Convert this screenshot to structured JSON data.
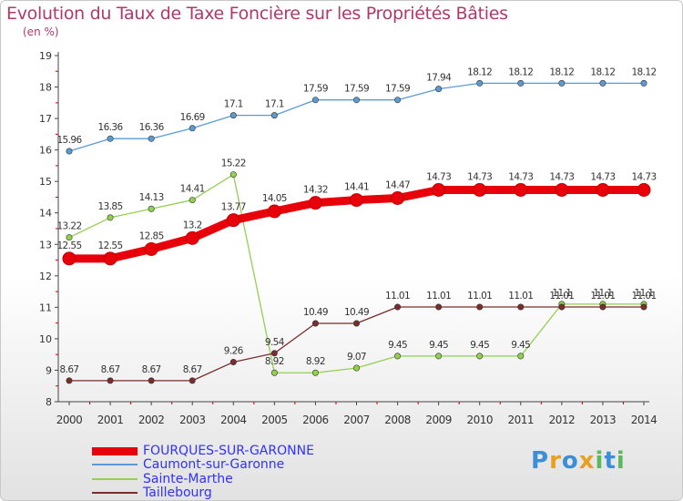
{
  "header": {
    "title": "Evolution du Taux de Taxe Foncière sur les Propriétés Bâties",
    "unit": "(en %)"
  },
  "chart_data": {
    "type": "line",
    "title": "Evolution du Taux de Taxe Foncière sur les Propriétés Bâties",
    "ylabel": "(en %)",
    "xlabel": "",
    "x": [
      "2000",
      "2001",
      "2002",
      "2003",
      "2004",
      "2005",
      "2006",
      "2007",
      "2008",
      "2009",
      "2010",
      "2011",
      "2012",
      "2013",
      "2014"
    ],
    "yticks": [
      "8",
      "9",
      "10",
      "11",
      "12",
      "13",
      "14",
      "15",
      "16",
      "17",
      "18",
      "19"
    ],
    "ylim": [
      8,
      19
    ],
    "grid": false,
    "legend": "bottom-left",
    "series": [
      {
        "name": "FOURQUES-SUR-GARONNE",
        "color": "#e8000b",
        "highlight": true,
        "values": [
          12.55,
          12.55,
          12.85,
          13.2,
          13.77,
          14.05,
          14.32,
          14.41,
          14.47,
          14.73,
          14.73,
          14.73,
          14.73,
          14.73,
          14.73
        ],
        "labels": [
          "12.55",
          "12.55",
          "12.85",
          "13.2",
          "13.77",
          "14.05",
          "14.32",
          "14.41",
          "14.47",
          "14.73",
          "14.73",
          "14.73",
          "14.73",
          "14.73",
          "14.73"
        ]
      },
      {
        "name": "Caumont-sur-Garonne",
        "color": "#5b9bd5",
        "values": [
          15.96,
          16.36,
          16.36,
          16.69,
          17.1,
          17.1,
          17.59,
          17.59,
          17.59,
          17.94,
          18.12,
          18.12,
          18.12,
          18.12,
          18.12
        ],
        "labels": [
          "15.96",
          "16.36",
          "16.36",
          "16.69",
          "17.1",
          "17.1",
          "17.59",
          "17.59",
          "17.59",
          "17.94",
          "18.12",
          "18.12",
          "18.12",
          "18.12",
          "18.12"
        ]
      },
      {
        "name": "Sainte-Marthe",
        "color": "#92d050",
        "values": [
          13.22,
          13.85,
          14.13,
          14.41,
          15.22,
          8.92,
          8.92,
          9.07,
          9.45,
          9.45,
          9.45,
          9.45,
          11.1,
          11.1,
          11.1
        ],
        "labels": [
          "13.22",
          "13.85",
          "14.13",
          "14.41",
          "15.22",
          "8.92",
          "8.92",
          "9.07",
          "9.45",
          "9.45",
          "9.45",
          "9.45",
          "11.1",
          "11.1",
          "11.1"
        ]
      },
      {
        "name": "Taillebourg",
        "color": "#7b2c2c",
        "values": [
          8.67,
          8.67,
          8.67,
          8.67,
          9.26,
          9.54,
          10.49,
          10.49,
          11.01,
          11.01,
          11.01,
          11.01,
          11.01,
          11.01,
          11.01
        ],
        "labels": [
          "8.67",
          "8.67",
          "8.67",
          "8.67",
          "9.26",
          "9.54",
          "10.49",
          "10.49",
          "11.01",
          "11.01",
          "11.01",
          "11.01",
          "11.01",
          "11.01",
          "11.01"
        ]
      }
    ]
  },
  "legend": {
    "items": [
      {
        "label": "FOURQUES-SUR-GARONNE",
        "color": "#e8000b",
        "text_color": "#3030ff"
      },
      {
        "label": "Caumont-sur-Garonne",
        "color": "#5b9bd5",
        "text_color": "#3030ff"
      },
      {
        "label": "Sainte-Marthe",
        "color": "#92d050",
        "text_color": "#3030ff"
      },
      {
        "label": "Taillebourg",
        "color": "#7b2c2c",
        "text_color": "#3030ff"
      }
    ]
  },
  "logo": {
    "letters": [
      "P",
      "r",
      "o",
      "x",
      "i",
      "t",
      "i"
    ],
    "colors": [
      "#3a8fd8",
      "#e8a020",
      "#3a8fd8",
      "#e8a020",
      "#5cb85c",
      "#3a8fd8",
      "#5cb85c"
    ]
  }
}
